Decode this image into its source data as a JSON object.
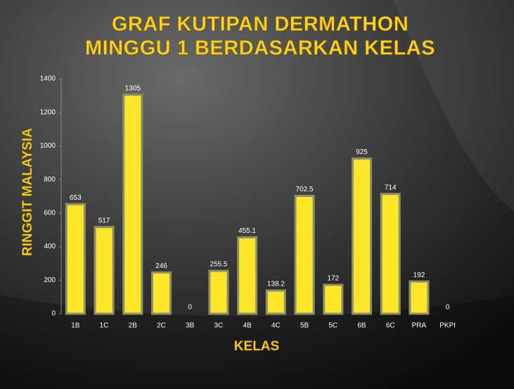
{
  "chart_data": {
    "type": "bar",
    "title": "GRAF KUTIPAN DERMATHON",
    "subtitle": "MINGGU 1 BERDASARKAN KELAS",
    "x_label": "KELAS",
    "y_label": "RINGGIT MALAYSIA",
    "categories": [
      "1B",
      "1C",
      "2B",
      "2C",
      "3B",
      "3C",
      "4B",
      "4C",
      "5B",
      "5C",
      "6B",
      "6C",
      "PRA",
      "PKPI"
    ],
    "values": [
      653,
      517,
      1305,
      246,
      0,
      255.5,
      455.1,
      138.2,
      702.5,
      172,
      925,
      714,
      192,
      0
    ],
    "color": "#ffe629",
    "ylim": [
      0,
      1400
    ],
    "yticks": [
      0,
      200,
      400,
      600,
      800,
      1000,
      1200,
      1400
    ],
    "grid": false
  }
}
